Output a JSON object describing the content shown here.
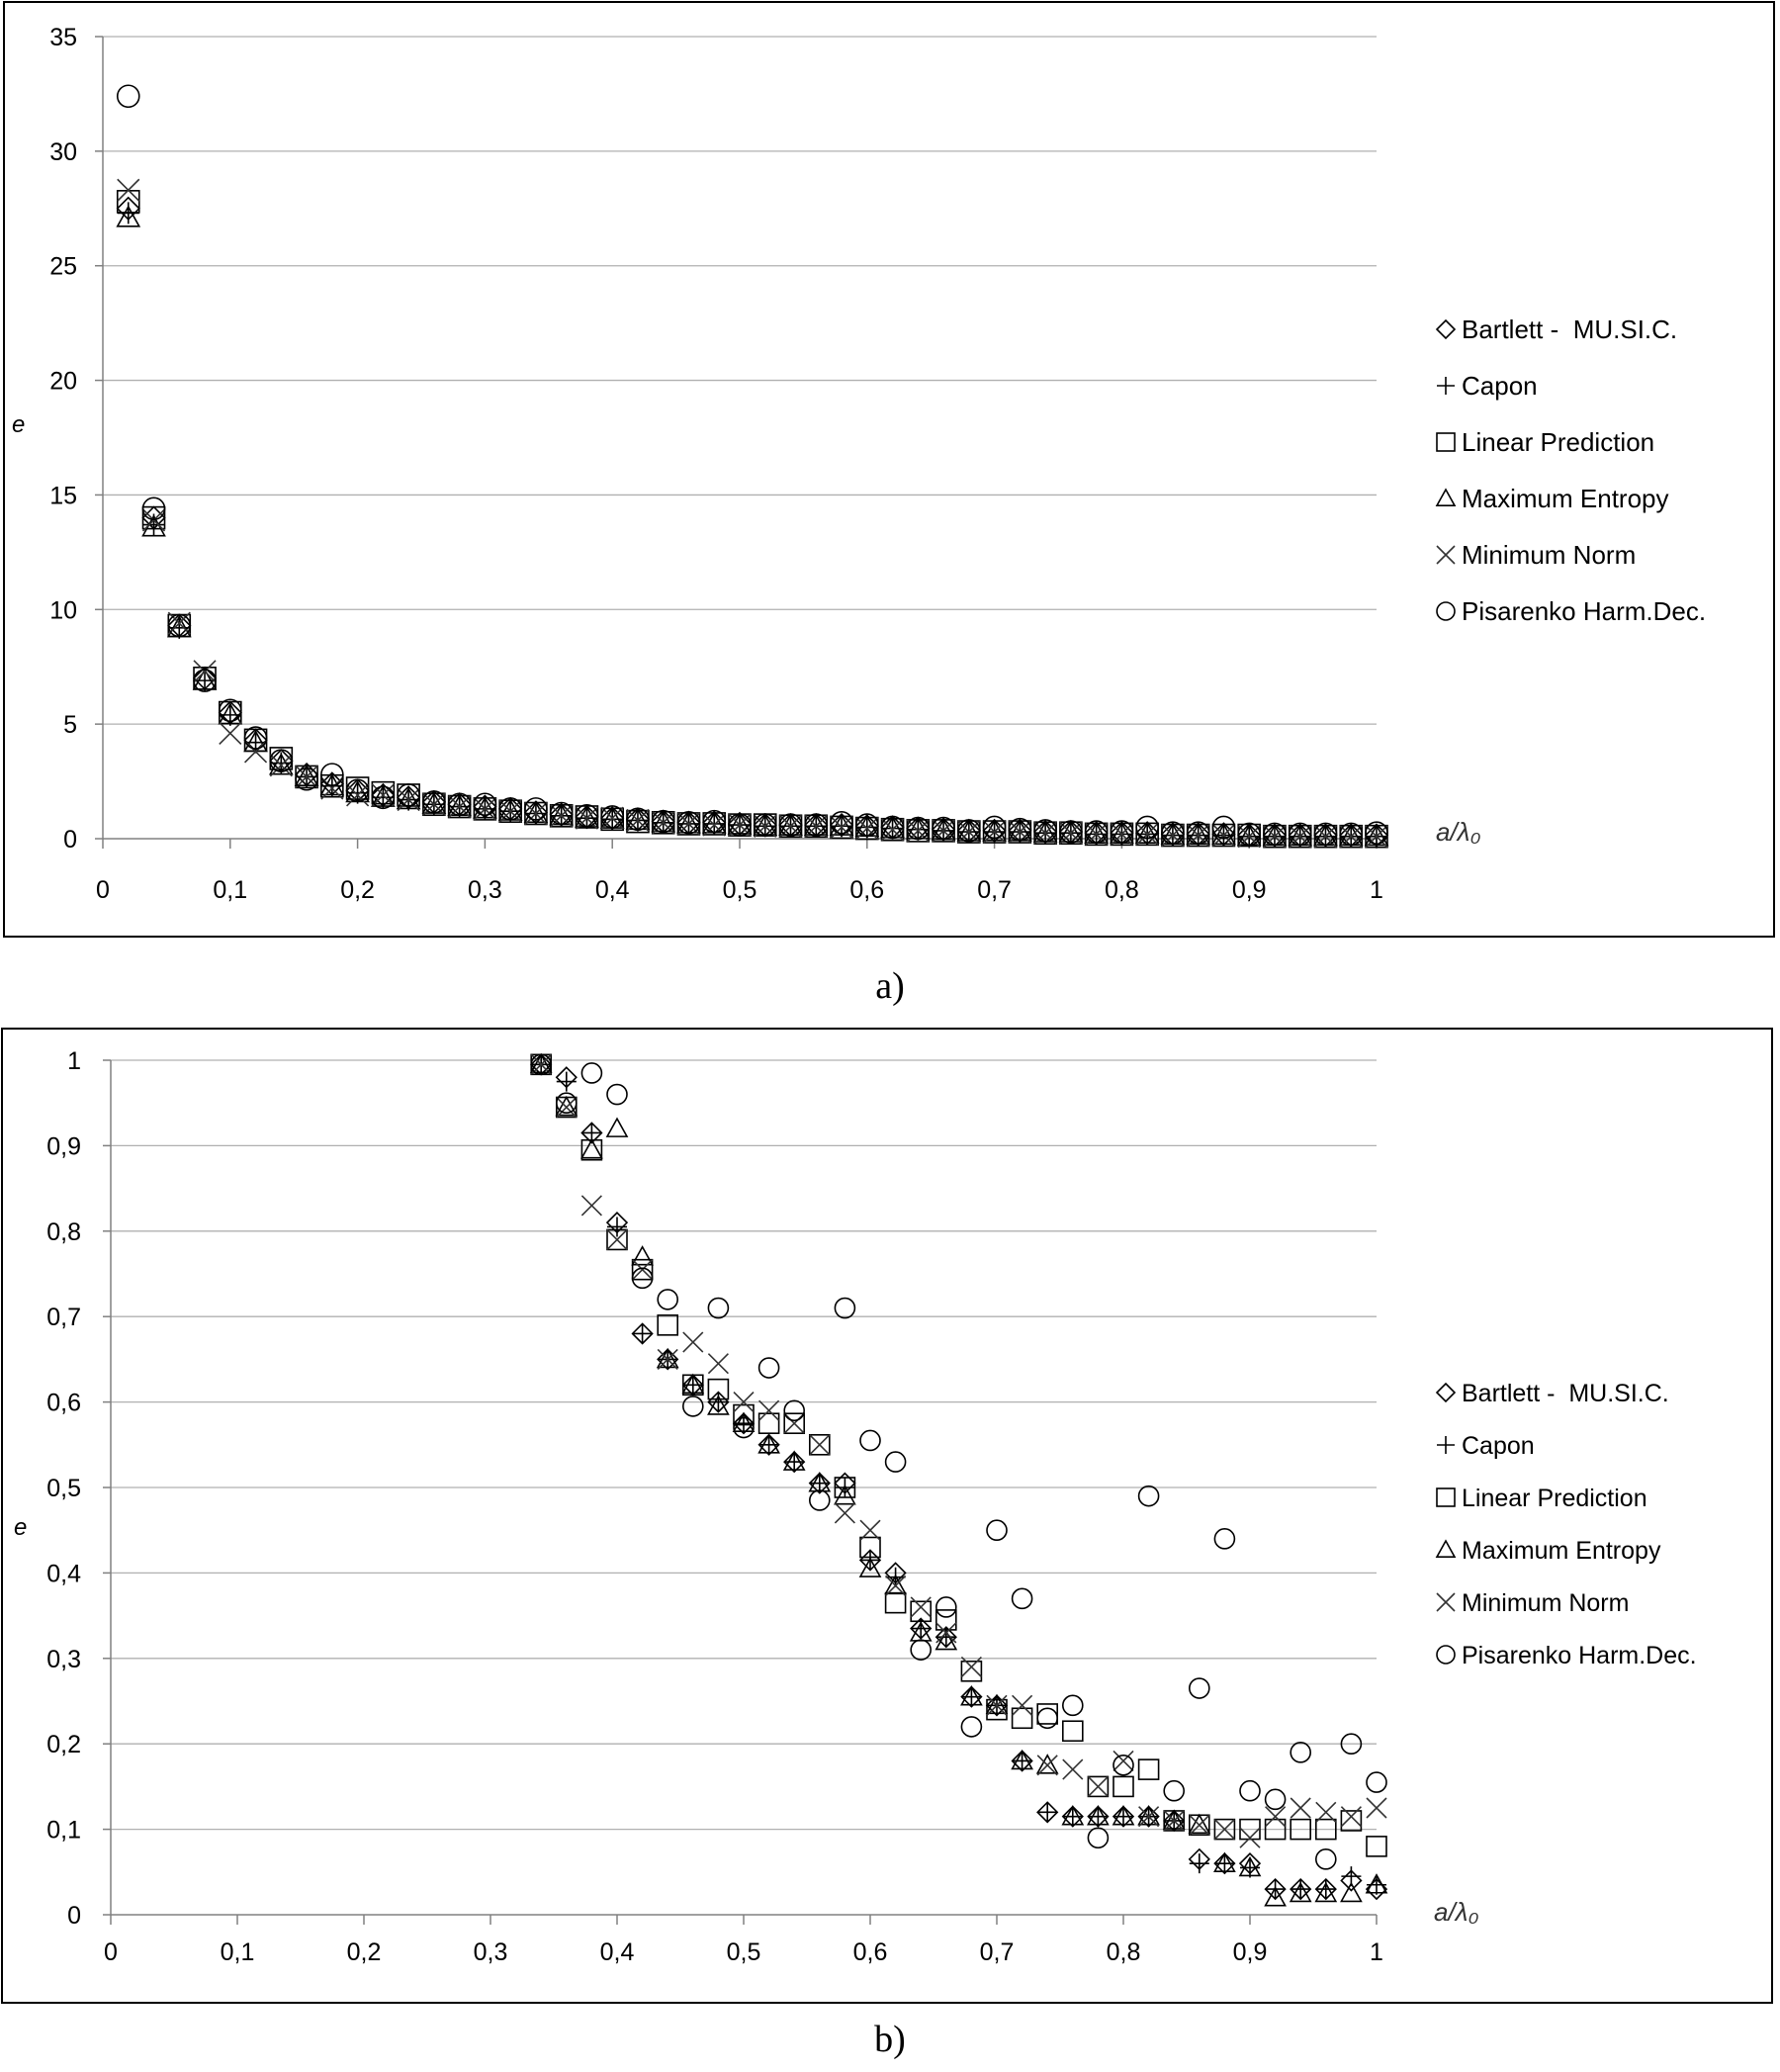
{
  "chart_data": [
    {
      "type": "scatter",
      "panel_label": "a)",
      "xlabel": "a/λ₀",
      "ylabel": "e",
      "xlim": [
        0,
        1
      ],
      "ylim": [
        0,
        35
      ],
      "x_ticks": [
        "0",
        "0,1",
        "0,2",
        "0,3",
        "0,4",
        "0,5",
        "0,6",
        "0,7",
        "0,8",
        "0,9",
        "1"
      ],
      "y_ticks": [
        "0",
        "5",
        "10",
        "15",
        "20",
        "25",
        "30",
        "35"
      ],
      "x_tick_values": [
        0,
        0.1,
        0.2,
        0.3,
        0.4,
        0.5,
        0.6,
        0.7,
        0.8,
        0.9,
        1
      ],
      "y_tick_values": [
        0,
        5,
        10,
        15,
        20,
        25,
        30,
        35
      ],
      "grid": "horizontal",
      "legend_position": "right",
      "x": [
        0.02,
        0.04,
        0.06,
        0.08,
        0.1,
        0.12,
        0.14,
        0.16,
        0.18,
        0.2,
        0.22,
        0.24,
        0.26,
        0.28,
        0.3,
        0.32,
        0.34,
        0.36,
        0.38,
        0.4,
        0.42,
        0.44,
        0.46,
        0.48,
        0.5,
        0.52,
        0.54,
        0.56,
        0.58,
        0.6,
        0.62,
        0.64,
        0.66,
        0.68,
        0.7,
        0.72,
        0.74,
        0.76,
        0.78,
        0.8,
        0.82,
        0.84,
        0.86,
        0.88,
        0.9,
        0.92,
        0.94,
        0.96,
        0.98,
        1.0
      ],
      "series": [
        {
          "name": "Bartlett -  MU.SI.C.",
          "marker": "diamond",
          "values": [
            27.5,
            14.0,
            9.3,
            7.0,
            5.5,
            4.3,
            3.4,
            2.8,
            2.4,
            2.1,
            1.9,
            1.8,
            1.6,
            1.5,
            1.4,
            1.3,
            1.15,
            1.05,
            0.95,
            0.9,
            0.85,
            0.75,
            0.7,
            0.7,
            0.65,
            0.6,
            0.6,
            0.6,
            0.6,
            0.55,
            0.5,
            0.45,
            0.4,
            0.35,
            0.35,
            0.35,
            0.3,
            0.3,
            0.25,
            0.25,
            0.25,
            0.2,
            0.2,
            0.2,
            0.15,
            0.15,
            0.15,
            0.15,
            0.15,
            0.15
          ]
        },
        {
          "name": "Capon",
          "marker": "plus",
          "values": [
            27.3,
            13.7,
            9.2,
            6.9,
            5.4,
            4.2,
            3.3,
            2.7,
            2.3,
            2.0,
            1.8,
            1.7,
            1.5,
            1.4,
            1.3,
            1.2,
            1.1,
            1.0,
            0.9,
            0.85,
            0.8,
            0.7,
            0.65,
            0.65,
            0.6,
            0.55,
            0.55,
            0.55,
            0.55,
            0.5,
            0.45,
            0.4,
            0.35,
            0.3,
            0.3,
            0.3,
            0.25,
            0.25,
            0.2,
            0.2,
            0.2,
            0.15,
            0.15,
            0.15,
            0.1,
            0.1,
            0.1,
            0.1,
            0.1,
            0.1
          ]
        },
        {
          "name": "Linear Prediction",
          "marker": "square",
          "values": [
            27.8,
            14.0,
            9.3,
            7.0,
            5.5,
            4.3,
            3.5,
            2.7,
            2.3,
            2.2,
            2.0,
            1.9,
            1.5,
            1.4,
            1.3,
            1.2,
            1.1,
            1.0,
            0.95,
            0.85,
            0.75,
            0.7,
            0.65,
            0.65,
            0.6,
            0.6,
            0.55,
            0.55,
            0.5,
            0.45,
            0.4,
            0.35,
            0.35,
            0.3,
            0.3,
            0.3,
            0.25,
            0.25,
            0.2,
            0.2,
            0.2,
            0.15,
            0.15,
            0.15,
            0.15,
            0.1,
            0.1,
            0.1,
            0.1,
            0.1
          ]
        },
        {
          "name": "Maximum Entropy",
          "marker": "triangle",
          "values": [
            27.1,
            13.6,
            9.2,
            6.9,
            5.4,
            4.2,
            3.2,
            2.7,
            2.3,
            2.0,
            1.8,
            1.7,
            1.5,
            1.4,
            1.3,
            1.2,
            1.1,
            1.0,
            0.9,
            0.85,
            0.8,
            0.7,
            0.65,
            0.65,
            0.6,
            0.55,
            0.55,
            0.55,
            0.55,
            0.5,
            0.45,
            0.4,
            0.35,
            0.3,
            0.3,
            0.3,
            0.25,
            0.25,
            0.2,
            0.2,
            0.2,
            0.15,
            0.15,
            0.15,
            0.1,
            0.1,
            0.1,
            0.1,
            0.1,
            0.1
          ]
        },
        {
          "name": "Minimum Norm",
          "marker": "x",
          "values": [
            28.3,
            13.9,
            9.4,
            7.3,
            4.6,
            3.8,
            3.2,
            2.7,
            2.2,
            1.9,
            1.9,
            1.7,
            1.5,
            1.4,
            1.3,
            1.2,
            1.1,
            1.0,
            0.9,
            0.9,
            0.8,
            0.7,
            0.65,
            0.6,
            0.6,
            0.55,
            0.55,
            0.55,
            0.5,
            0.45,
            0.4,
            0.35,
            0.35,
            0.3,
            0.3,
            0.3,
            0.25,
            0.25,
            0.2,
            0.2,
            0.2,
            0.15,
            0.15,
            0.15,
            0.1,
            0.1,
            0.1,
            0.1,
            0.1,
            0.1
          ]
        },
        {
          "name": "Pisarenko Harm.Dec.",
          "marker": "circle",
          "values": [
            32.4,
            14.4,
            9.3,
            6.9,
            5.6,
            4.4,
            3.4,
            2.6,
            2.8,
            2.1,
            1.8,
            1.9,
            1.6,
            1.5,
            1.5,
            1.3,
            1.3,
            1.1,
            1.0,
            0.95,
            0.85,
            0.75,
            0.7,
            0.75,
            0.6,
            0.6,
            0.6,
            0.6,
            0.7,
            0.6,
            0.5,
            0.45,
            0.45,
            0.35,
            0.5,
            0.4,
            0.35,
            0.3,
            0.3,
            0.3,
            0.5,
            0.25,
            0.25,
            0.5,
            0.2,
            0.2,
            0.2,
            0.2,
            0.2,
            0.25
          ]
        }
      ]
    },
    {
      "type": "scatter",
      "panel_label": "b)",
      "xlabel": "a/λ₀",
      "ylabel": "e",
      "xlim": [
        0,
        1
      ],
      "ylim": [
        0,
        1
      ],
      "x_ticks": [
        "0",
        "0,1",
        "0,2",
        "0,3",
        "0,4",
        "0,5",
        "0,6",
        "0,7",
        "0,8",
        "0,9",
        "1"
      ],
      "y_ticks": [
        "0",
        "0,1",
        "0,2",
        "0,3",
        "0,4",
        "0,5",
        "0,6",
        "0,7",
        "0,8",
        "0,9",
        "1"
      ],
      "x_tick_values": [
        0,
        0.1,
        0.2,
        0.3,
        0.4,
        0.5,
        0.6,
        0.7,
        0.8,
        0.9,
        1
      ],
      "y_tick_values": [
        0,
        0.1,
        0.2,
        0.3,
        0.4,
        0.5,
        0.6,
        0.7,
        0.8,
        0.9,
        1
      ],
      "grid": "horizontal",
      "legend_position": "right",
      "x": [
        0.34,
        0.36,
        0.38,
        0.4,
        0.42,
        0.44,
        0.46,
        0.48,
        0.5,
        0.52,
        0.54,
        0.56,
        0.58,
        0.6,
        0.62,
        0.64,
        0.66,
        0.68,
        0.7,
        0.72,
        0.74,
        0.76,
        0.78,
        0.8,
        0.82,
        0.84,
        0.86,
        0.88,
        0.9,
        0.92,
        0.94,
        0.96,
        0.98,
        1.0
      ],
      "series": [
        {
          "name": "Bartlett -  MU.SI.C.",
          "marker": "diamond",
          "values": [
            0.995,
            0.98,
            0.915,
            0.81,
            0.68,
            0.65,
            0.62,
            0.6,
            0.575,
            0.55,
            0.53,
            0.505,
            0.505,
            0.415,
            0.4,
            0.335,
            0.325,
            0.255,
            0.245,
            0.18,
            0.12,
            0.115,
            0.115,
            0.115,
            0.115,
            0.11,
            0.065,
            0.06,
            0.06,
            0.03,
            0.03,
            0.03,
            0.04,
            0.03
          ]
        },
        {
          "name": "Capon",
          "marker": "plus",
          "values": [
            0.995,
            0.975,
            0.915,
            0.805,
            0.68,
            0.65,
            0.62,
            0.6,
            0.575,
            0.55,
            0.53,
            0.505,
            0.5,
            0.415,
            0.395,
            0.335,
            0.325,
            0.255,
            0.245,
            0.18,
            0.12,
            0.115,
            0.115,
            0.115,
            0.115,
            0.11,
            0.06,
            0.06,
            0.055,
            0.03,
            0.03,
            0.03,
            0.045,
            0.035
          ]
        },
        {
          "name": "Linear Prediction",
          "marker": "square",
          "values": [
            0.995,
            0.945,
            0.895,
            0.79,
            0.755,
            0.69,
            0.62,
            0.615,
            0.585,
            0.575,
            0.575,
            0.55,
            0.5,
            0.43,
            0.365,
            0.355,
            0.345,
            0.285,
            0.24,
            0.23,
            0.235,
            0.215,
            0.15,
            0.15,
            0.17,
            0.11,
            0.105,
            0.1,
            0.1,
            0.1,
            0.1,
            0.1,
            0.11,
            0.08
          ]
        },
        {
          "name": "Maximum Entropy",
          "marker": "triangle",
          "values": [
            0.995,
            0.945,
            0.895,
            0.92,
            0.77,
            0.65,
            0.62,
            0.595,
            0.575,
            0.55,
            0.53,
            0.505,
            0.49,
            0.405,
            0.385,
            0.33,
            0.32,
            0.255,
            0.245,
            0.18,
            0.175,
            0.115,
            0.115,
            0.115,
            0.115,
            0.11,
            0.105,
            0.06,
            0.055,
            0.02,
            0.025,
            0.025,
            0.025,
            0.035
          ]
        },
        {
          "name": "Minimum Norm",
          "marker": "x",
          "values": [
            0.995,
            0.945,
            0.83,
            0.79,
            0.755,
            0.65,
            0.67,
            0.645,
            0.6,
            0.59,
            0.575,
            0.55,
            0.47,
            0.45,
            0.385,
            0.36,
            0.33,
            0.29,
            0.245,
            0.245,
            0.175,
            0.17,
            0.15,
            0.18,
            0.115,
            0.11,
            0.105,
            0.1,
            0.09,
            0.115,
            0.125,
            0.12,
            0.115,
            0.125
          ]
        },
        {
          "name": "Pisarenko Harm.Dec.",
          "marker": "circle",
          "values": [
            0.995,
            0.95,
            0.985,
            0.96,
            0.745,
            0.72,
            0.595,
            0.71,
            0.57,
            0.64,
            0.59,
            0.485,
            0.71,
            0.555,
            0.53,
            0.31,
            0.36,
            0.22,
            0.45,
            0.37,
            0.23,
            0.245,
            0.09,
            0.175,
            0.49,
            0.145,
            0.265,
            0.44,
            0.145,
            0.135,
            0.19,
            0.065,
            0.2,
            0.155
          ]
        }
      ]
    }
  ]
}
